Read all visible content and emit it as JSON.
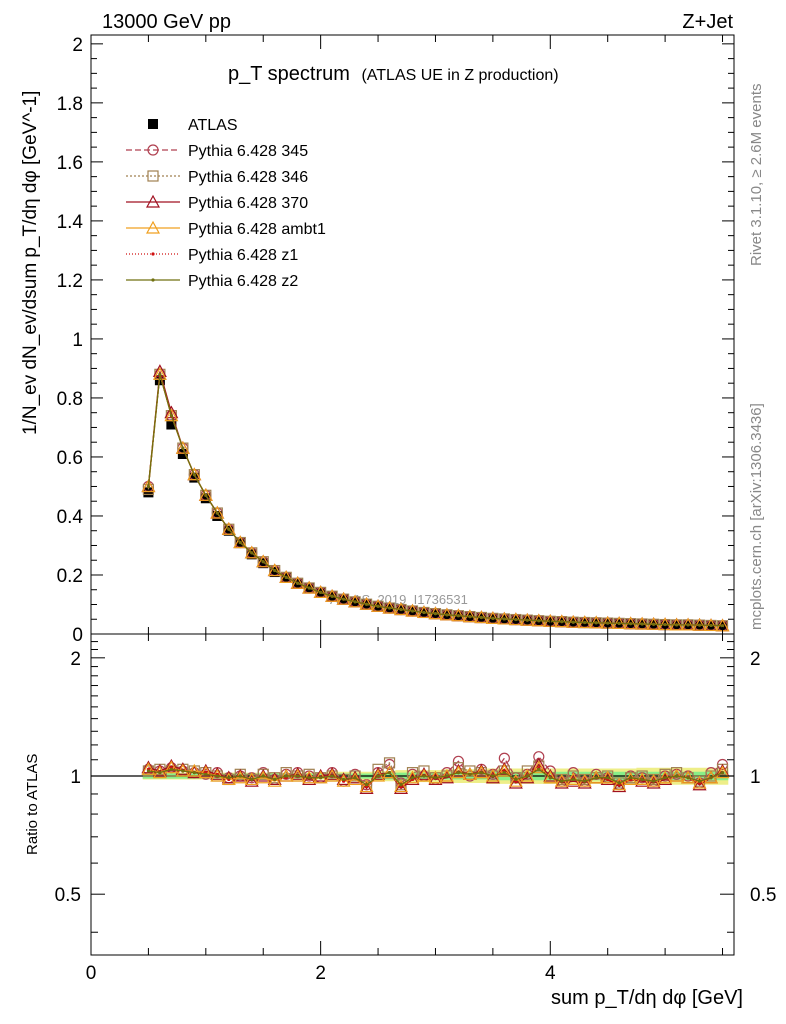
{
  "header": {
    "left": "13000 GeV pp",
    "right": "Z+Jet"
  },
  "side": {
    "rivet": "Rivet 3.1.10, ≥ 2.6M events",
    "mcplots": "mcplots.cern.ch [arXiv:1306.3436]"
  },
  "watermark": "ATLAS_2019_I1736531",
  "chart_data": [
    {
      "type": "line",
      "title": "p_T spectrum",
      "subtitle": "(ATLAS UE in Z production)",
      "ylabel": "1/N_ev dN_ev/dsum p_T/dη dφ [GeV^-1]",
      "xlim": [
        0,
        5.6
      ],
      "ylim": [
        0,
        2.03
      ],
      "x_ticks": [
        "0",
        "2",
        "4"
      ],
      "y_ticks": [
        "0",
        "0.2",
        "0.4",
        "0.6",
        "0.8",
        "1",
        "1.2",
        "1.4",
        "1.6",
        "1.8",
        "2"
      ],
      "legend_position": "top-left",
      "x": [
        0.5,
        0.6,
        0.7,
        0.8,
        0.9,
        1.0,
        1.1,
        1.2,
        1.3,
        1.4,
        1.5,
        1.6,
        1.7,
        1.8,
        1.9,
        2.0,
        2.1,
        2.2,
        2.3,
        2.4,
        2.5,
        2.6,
        2.7,
        2.8,
        2.9,
        3.0,
        3.1,
        3.2,
        3.3,
        3.4,
        3.5,
        3.6,
        3.7,
        3.8,
        3.9,
        4.0,
        4.1,
        4.2,
        4.3,
        4.4,
        4.5,
        4.6,
        4.7,
        4.8,
        4.9,
        5.0,
        5.1,
        5.2,
        5.3,
        5.4,
        5.5
      ],
      "series": [
        {
          "name": "ATLAS",
          "color": "#000000",
          "marker": "square-filled",
          "values": [
            0.48,
            0.86,
            0.71,
            0.61,
            0.53,
            0.46,
            0.4,
            0.35,
            0.31,
            0.27,
            0.24,
            0.21,
            0.19,
            0.17,
            0.155,
            0.14,
            0.127,
            0.117,
            0.108,
            0.1,
            0.093,
            0.087,
            0.082,
            0.077,
            0.072,
            0.068,
            0.064,
            0.061,
            0.058,
            0.055,
            0.052,
            0.05,
            0.048,
            0.046,
            0.044,
            0.042,
            0.041,
            0.039,
            0.038,
            0.037,
            0.036,
            0.035,
            0.034,
            0.033,
            0.032,
            0.031,
            0.03,
            0.03,
            0.029,
            0.028,
            0.027
          ]
        },
        {
          "name": "Pythia 6.428 345",
          "color": "#b04050",
          "marker": "circle-open",
          "dash": "6,3",
          "values": [
            0.5,
            0.88,
            0.74,
            0.63,
            0.54,
            0.47,
            0.41,
            0.355,
            0.31,
            0.275,
            0.245,
            0.215,
            0.192,
            0.172,
            0.156,
            0.141,
            0.128,
            0.118,
            0.109,
            0.101,
            0.094,
            0.088,
            0.083,
            0.078,
            0.073,
            0.069,
            0.065,
            0.062,
            0.059,
            0.056,
            0.053,
            0.051,
            0.049,
            0.047,
            0.045,
            0.043,
            0.042,
            0.04,
            0.039,
            0.038,
            0.037,
            0.036,
            0.035,
            0.034,
            0.033,
            0.032,
            0.031,
            0.031,
            0.03,
            0.029,
            0.028
          ]
        },
        {
          "name": "Pythia 6.428 346",
          "color": "#a08050",
          "marker": "square-open",
          "dash": "2,2",
          "values": [
            0.49,
            0.88,
            0.74,
            0.63,
            0.54,
            0.47,
            0.41,
            0.355,
            0.31,
            0.275,
            0.245,
            0.215,
            0.192,
            0.172,
            0.156,
            0.141,
            0.128,
            0.118,
            0.109,
            0.101,
            0.094,
            0.088,
            0.083,
            0.078,
            0.073,
            0.069,
            0.065,
            0.062,
            0.059,
            0.056,
            0.053,
            0.051,
            0.049,
            0.047,
            0.045,
            0.043,
            0.042,
            0.04,
            0.039,
            0.038,
            0.037,
            0.036,
            0.035,
            0.034,
            0.033,
            0.032,
            0.031,
            0.031,
            0.03,
            0.029,
            0.028
          ]
        },
        {
          "name": "Pythia 6.428 370",
          "color": "#a01020",
          "marker": "triangle-open",
          "dash": "",
          "values": [
            0.5,
            0.89,
            0.75,
            0.63,
            0.54,
            0.47,
            0.41,
            0.355,
            0.31,
            0.275,
            0.245,
            0.215,
            0.192,
            0.172,
            0.156,
            0.141,
            0.128,
            0.118,
            0.109,
            0.101,
            0.094,
            0.088,
            0.083,
            0.078,
            0.073,
            0.069,
            0.065,
            0.062,
            0.059,
            0.056,
            0.053,
            0.051,
            0.049,
            0.047,
            0.045,
            0.043,
            0.042,
            0.04,
            0.039,
            0.038,
            0.037,
            0.036,
            0.035,
            0.034,
            0.033,
            0.032,
            0.031,
            0.031,
            0.03,
            0.029,
            0.028
          ]
        },
        {
          "name": "Pythia 6.428 ambt1",
          "color": "#f0a020",
          "marker": "triangle-open",
          "dash": "",
          "values": [
            0.5,
            0.88,
            0.74,
            0.63,
            0.54,
            0.47,
            0.41,
            0.355,
            0.31,
            0.275,
            0.245,
            0.215,
            0.192,
            0.172,
            0.156,
            0.141,
            0.128,
            0.118,
            0.109,
            0.101,
            0.094,
            0.088,
            0.083,
            0.078,
            0.073,
            0.069,
            0.065,
            0.062,
            0.059,
            0.056,
            0.053,
            0.051,
            0.049,
            0.047,
            0.045,
            0.043,
            0.042,
            0.04,
            0.039,
            0.038,
            0.037,
            0.036,
            0.035,
            0.034,
            0.033,
            0.032,
            0.031,
            0.031,
            0.03,
            0.029,
            0.028
          ]
        },
        {
          "name": "Pythia 6.428 z1",
          "color": "#d01010",
          "marker": "dot",
          "dash": "1,2",
          "values": [
            0.5,
            0.88,
            0.74,
            0.63,
            0.54,
            0.47,
            0.41,
            0.355,
            0.31,
            0.275,
            0.245,
            0.215,
            0.192,
            0.172,
            0.156,
            0.141,
            0.128,
            0.118,
            0.109,
            0.101,
            0.094,
            0.088,
            0.083,
            0.078,
            0.073,
            0.069,
            0.065,
            0.062,
            0.059,
            0.056,
            0.053,
            0.051,
            0.049,
            0.047,
            0.045,
            0.043,
            0.042,
            0.04,
            0.039,
            0.038,
            0.037,
            0.036,
            0.035,
            0.034,
            0.033,
            0.032,
            0.031,
            0.031,
            0.03,
            0.029,
            0.028
          ]
        },
        {
          "name": "Pythia 6.428 z2",
          "color": "#707010",
          "marker": "dot",
          "dash": "",
          "values": [
            0.5,
            0.88,
            0.74,
            0.63,
            0.54,
            0.47,
            0.41,
            0.355,
            0.31,
            0.275,
            0.245,
            0.215,
            0.192,
            0.172,
            0.156,
            0.141,
            0.128,
            0.118,
            0.109,
            0.101,
            0.094,
            0.088,
            0.083,
            0.078,
            0.073,
            0.069,
            0.065,
            0.062,
            0.059,
            0.056,
            0.053,
            0.051,
            0.049,
            0.047,
            0.045,
            0.043,
            0.042,
            0.04,
            0.039,
            0.038,
            0.037,
            0.036,
            0.035,
            0.034,
            0.033,
            0.032,
            0.031,
            0.031,
            0.03,
            0.029,
            0.028
          ]
        }
      ]
    },
    {
      "type": "line",
      "ylabel": "Ratio to ATLAS",
      "xlabel": "sum p_T/dη dφ [GeV]",
      "xlim": [
        0,
        5.6
      ],
      "ylim": [
        0.35,
        2.3
      ],
      "log_y": true,
      "x_ticks": [
        "0",
        "2",
        "4"
      ],
      "y_ticks": [
        "0.5",
        "1",
        "2"
      ],
      "band_inner_color": "#88ee88",
      "band_outer_color": "#eeee88",
      "x": [
        0.5,
        0.6,
        0.7,
        0.8,
        0.9,
        1.0,
        1.1,
        1.2,
        1.3,
        1.4,
        1.5,
        1.6,
        1.7,
        1.8,
        1.9,
        2.0,
        2.1,
        2.2,
        2.3,
        2.4,
        2.5,
        2.6,
        2.7,
        2.8,
        2.9,
        3.0,
        3.1,
        3.2,
        3.3,
        3.4,
        3.5,
        3.6,
        3.7,
        3.8,
        3.9,
        4.0,
        4.1,
        4.2,
        4.3,
        4.4,
        4.5,
        4.6,
        4.7,
        4.8,
        4.9,
        5.0,
        5.1,
        5.2,
        5.3,
        5.4,
        5.5
      ],
      "band_inner": [
        0.015,
        0.015,
        0.015,
        0.015,
        0.015,
        0.015,
        0.015,
        0.015,
        0.015,
        0.015,
        0.015,
        0.015,
        0.015,
        0.015,
        0.015,
        0.015,
        0.015,
        0.015,
        0.015,
        0.015,
        0.02,
        0.02,
        0.02,
        0.02,
        0.02,
        0.02,
        0.02,
        0.02,
        0.02,
        0.02,
        0.025,
        0.025,
        0.025,
        0.025,
        0.025,
        0.025,
        0.025,
        0.025,
        0.025,
        0.025,
        0.025,
        0.025,
        0.025,
        0.025,
        0.025,
        0.025,
        0.025,
        0.025,
        0.025,
        0.025,
        0.025
      ],
      "band_outer": [
        0.02,
        0.02,
        0.02,
        0.02,
        0.02,
        0.02,
        0.02,
        0.02,
        0.02,
        0.02,
        0.02,
        0.02,
        0.02,
        0.02,
        0.02,
        0.02,
        0.025,
        0.025,
        0.025,
        0.025,
        0.03,
        0.03,
        0.035,
        0.035,
        0.035,
        0.035,
        0.04,
        0.04,
        0.04,
        0.04,
        0.045,
        0.045,
        0.045,
        0.045,
        0.045,
        0.045,
        0.045,
        0.045,
        0.045,
        0.045,
        0.045,
        0.045,
        0.045,
        0.05,
        0.05,
        0.05,
        0.05,
        0.05,
        0.05,
        0.05,
        0.05
      ],
      "series": [
        {
          "name": "Pythia 6.428 345",
          "color": "#b04050",
          "marker": "circle-open",
          "dash": "6,3",
          "values": [
            1.04,
            1.03,
            1.05,
            1.03,
            1.02,
            1.01,
            1.02,
            0.99,
            1.0,
            0.99,
            1.02,
            0.98,
            1.01,
            1.02,
            1.0,
            0.99,
            1.02,
            0.97,
            1.01,
            0.95,
            1.02,
            1.07,
            0.96,
            1.01,
            1.0,
            0.98,
            1.02,
            1.09,
            1.0,
            1.04,
            1.01,
            1.11,
            0.99,
            1.01,
            1.12,
            1.03,
            0.97,
            1.02,
            0.97,
            1.01,
            0.99,
            0.95,
            1.0,
            0.99,
            0.97,
            1.0,
            1.01,
            1.0,
            0.96,
            1.02,
            1.07
          ]
        },
        {
          "name": "Pythia 6.428 346",
          "color": "#a08050",
          "marker": "square-open",
          "dash": "2,2",
          "values": [
            1.03,
            1.04,
            1.03,
            1.04,
            1.03,
            1.02,
            1.0,
            0.98,
            1.01,
            0.98,
            1.01,
            0.99,
            1.02,
            1.0,
            1.01,
            0.99,
            1.0,
            0.98,
            1.0,
            0.94,
            1.04,
            1.08,
            0.95,
            1.02,
            1.03,
            0.99,
            1.0,
            1.05,
            1.03,
            1.02,
            1.0,
            1.03,
            0.99,
            1.03,
            1.06,
            0.99,
            0.98,
            1.0,
            0.98,
            0.99,
            1.0,
            0.96,
            0.99,
            1.0,
            0.98,
            1.01,
            1.02,
            0.99,
            0.97,
            1.0,
            1.04
          ]
        },
        {
          "name": "Pythia 6.428 370",
          "color": "#a01020",
          "marker": "triangle-open",
          "dash": "",
          "values": [
            1.05,
            1.03,
            1.06,
            1.04,
            1.02,
            1.03,
            1.01,
            0.99,
            1.0,
            0.97,
            1.0,
            0.98,
            1.0,
            1.01,
            0.98,
            1.0,
            1.01,
            0.98,
            0.99,
            0.93,
            1.01,
            1.02,
            0.93,
            0.98,
            1.01,
            0.98,
            0.99,
            1.03,
            1.01,
            1.03,
            0.99,
            1.04,
            0.96,
            0.99,
            1.07,
            1.0,
            0.96,
            0.97,
            0.96,
            0.99,
            0.98,
            0.94,
            0.98,
            0.97,
            0.96,
            0.98,
            1.0,
            0.99,
            0.95,
            0.99,
            1.03
          ]
        },
        {
          "name": "Pythia 6.428 ambt1",
          "color": "#f0a020",
          "marker": "triangle-open",
          "dash": "",
          "values": [
            1.04,
            1.02,
            1.05,
            1.03,
            1.03,
            1.02,
            1.0,
            0.98,
            0.99,
            0.98,
            0.99,
            0.97,
            1.0,
            1.0,
            0.99,
            0.99,
            1.0,
            0.97,
            0.98,
            0.94,
            1.0,
            1.02,
            0.94,
            0.99,
            1.0,
            0.99,
            1.0,
            1.02,
            1.01,
            1.02,
            1.0,
            1.03,
            0.97,
            1.0,
            1.05,
            0.99,
            0.97,
            0.98,
            0.97,
            0.99,
            0.99,
            0.95,
            0.98,
            0.98,
            0.97,
            0.99,
            1.0,
            0.99,
            0.96,
            0.99,
            1.02
          ]
        },
        {
          "name": "Pythia 6.428 z1",
          "color": "#d01010",
          "marker": "dot",
          "dash": "1,2",
          "values": [
            1.04,
            1.02,
            1.05,
            1.03,
            1.02,
            1.02,
            1.01,
            0.98,
            1.0,
            0.98,
            1.0,
            0.98,
            0.99,
            1.0,
            0.99,
            0.99,
            1.0,
            0.97,
            0.99,
            0.94,
            1.0,
            1.02,
            0.94,
            0.98,
            1.0,
            0.99,
            1.0,
            1.02,
            1.01,
            1.02,
            1.0,
            1.03,
            0.97,
            1.0,
            1.05,
            0.99,
            0.97,
            0.98,
            0.97,
            0.99,
            0.98,
            0.95,
            0.98,
            0.98,
            0.97,
            0.99,
            1.0,
            0.99,
            0.96,
            0.99,
            1.02
          ]
        },
        {
          "name": "Pythia 6.428 z2",
          "color": "#707010",
          "marker": "dot",
          "dash": "",
          "values": [
            1.03,
            1.02,
            1.04,
            1.03,
            1.02,
            1.01,
            1.0,
            0.99,
            1.0,
            0.98,
            1.0,
            0.98,
            1.0,
            1.0,
            0.99,
            0.99,
            1.0,
            0.98,
            0.99,
            0.95,
            1.0,
            1.02,
            0.95,
            0.99,
            1.0,
            0.99,
            1.0,
            1.02,
            1.01,
            1.02,
            1.0,
            1.02,
            0.98,
            1.0,
            1.04,
            0.99,
            0.97,
            0.98,
            0.97,
            0.99,
            0.99,
            0.96,
            0.99,
            0.98,
            0.97,
            0.99,
            1.0,
            0.99,
            0.97,
            0.99,
            1.02
          ]
        }
      ]
    }
  ]
}
